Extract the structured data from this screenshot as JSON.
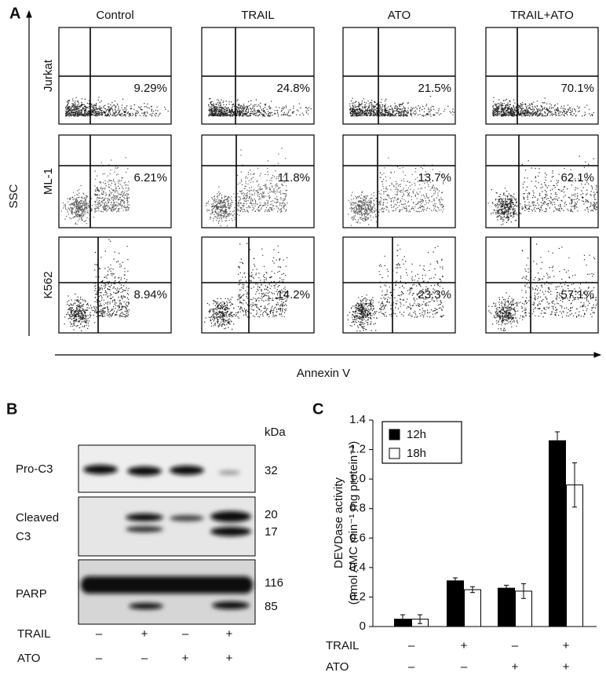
{
  "panel_a": {
    "label": "A",
    "y_axis_label": "SSC",
    "x_axis_label": "Annexin V",
    "columns": [
      "Control",
      "TRAIL",
      "ATO",
      "TRAIL+ATO"
    ],
    "rows": [
      "Jurkat",
      "ML-1",
      "K562"
    ],
    "percentages": [
      [
        "9.29%",
        "24.8%",
        "21.5%",
        "70.1%"
      ],
      [
        "6.21%",
        "11.8%",
        "13.7%",
        "62.1%"
      ],
      [
        "8.94%",
        "14.2%",
        "23.3%",
        "57.1%"
      ]
    ]
  },
  "panel_b": {
    "label": "B",
    "unit": "kDa",
    "blots": [
      {
        "name": [
          "Pro-C3"
        ],
        "sizes": [
          "32"
        ]
      },
      {
        "name": [
          "Cleaved",
          "C3"
        ],
        "sizes": [
          "20",
          "17"
        ]
      },
      {
        "name": [
          "PARP"
        ],
        "sizes": [
          "116",
          "85"
        ]
      }
    ],
    "treatments": [
      {
        "label": "TRAIL",
        "signs": [
          "–",
          "+",
          "–",
          "+"
        ]
      },
      {
        "label": "ATO",
        "signs": [
          "–",
          "–",
          "+",
          "+"
        ]
      }
    ]
  },
  "chart_data": {
    "type": "bar",
    "label": "C",
    "y_label": [
      "DEVDase activity",
      "(nmol AMC min⁻¹ mg protein⁻¹)"
    ],
    "ylim": [
      0,
      1.4
    ],
    "yticks": [
      0,
      0.2,
      0.4,
      0.6,
      0.8,
      {
        "value": 1,
        "label": "1.0"
      },
      1.2,
      1.4
    ],
    "series": [
      {
        "name": "12h",
        "color": "#000000",
        "values": [
          0.05,
          0.31,
          0.26,
          1.26
        ],
        "errors": [
          0.03,
          0.02,
          0.02,
          0.06
        ]
      },
      {
        "name": "18h",
        "color": "#ffffff",
        "values": [
          0.05,
          0.25,
          0.24,
          0.96
        ],
        "errors": [
          0.03,
          0.02,
          0.05,
          0.15
        ]
      }
    ],
    "treatments": [
      {
        "label": "TRAIL",
        "signs": [
          "–",
          "+",
          "–",
          "+"
        ]
      },
      {
        "label": "ATO",
        "signs": [
          "–",
          "–",
          "+",
          "+"
        ]
      }
    ]
  }
}
